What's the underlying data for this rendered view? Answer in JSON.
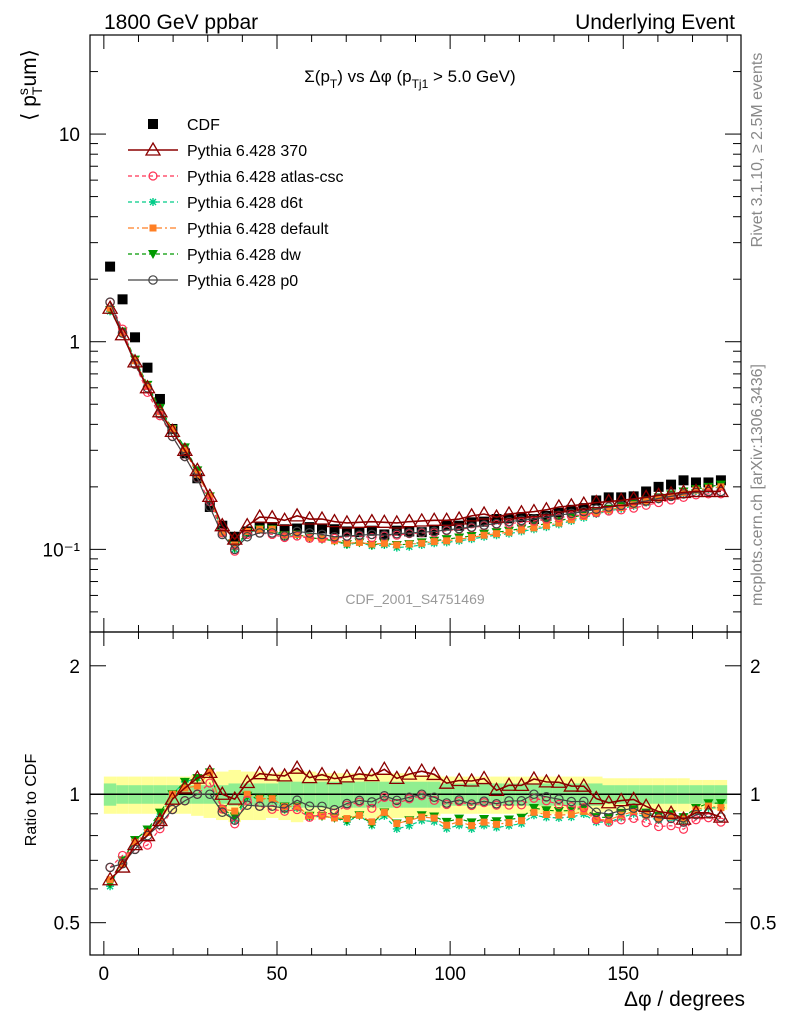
{
  "header": {
    "left": "1800 GeV ppbar",
    "right": "Underlying Event"
  },
  "side_labels": {
    "rivet": "Rivet 3.1.10, ≥ 2.5M events",
    "mcplots": "mcplots.cern.ch [arXiv:1306.3436]"
  },
  "watermark": "CDF_2001_S4751469",
  "main_title": {
    "sigma": "Σ(p",
    "sub_T": "T",
    "mid": ") vs Δφ (p",
    "sub_Tj1": "Tj1",
    "end": " > 5.0 GeV)"
  },
  "ylabel_top": {
    "open": "⟨ p",
    "sup_s": "s",
    "sub_T": "T",
    "rest": "um⟩"
  },
  "ylabel_ratio": "Ratio to CDF",
  "xlabel": "Δφ / degrees",
  "colors": {
    "cdf": "#000000",
    "p370": "#8b0000",
    "atlas": "#ff3355",
    "d6t": "#00cc88",
    "default": "#ff7f24",
    "dw": "#009900",
    "p0": "#444444",
    "band_inner": "#90ee90",
    "band_outer": "#ffff99"
  },
  "chart_data": [
    {
      "type": "scatter",
      "yscale": "log",
      "xlim": [
        -4,
        184
      ],
      "ylim": [
        0.04,
        30
      ],
      "x_ticks": [
        "0",
        "50",
        "100",
        "150"
      ],
      "y_ticks": [
        "10⁻¹",
        "1",
        "10"
      ],
      "legend_position": "top-left",
      "legend": [
        {
          "key": "cdf",
          "label": "CDF"
        },
        {
          "key": "p370",
          "label": "Pythia 6.428 370"
        },
        {
          "key": "atlas",
          "label": "Pythia 6.428 atlas-csc"
        },
        {
          "key": "d6t",
          "label": "Pythia 6.428 d6t"
        },
        {
          "key": "default",
          "label": "Pythia 6.428 default"
        },
        {
          "key": "dw",
          "label": "Pythia 6.428 dw"
        },
        {
          "key": "p0",
          "label": "Pythia 6.428 p0"
        }
      ],
      "x": [
        1.8,
        5.4,
        9.0,
        12.6,
        16.2,
        19.8,
        23.4,
        27.0,
        30.6,
        34.2,
        37.8,
        41.4,
        45.0,
        48.6,
        52.2,
        55.8,
        59.4,
        63.0,
        66.6,
        70.2,
        73.8,
        77.4,
        81.0,
        84.6,
        88.2,
        91.8,
        95.4,
        99.0,
        102.6,
        106.2,
        109.8,
        113.4,
        117.0,
        120.6,
        124.2,
        127.8,
        131.4,
        135.0,
        138.6,
        142.2,
        145.8,
        149.4,
        153.0,
        156.6,
        160.2,
        163.8,
        167.4,
        171.0,
        174.6,
        178.2
      ],
      "cdf": [
        2.3,
        1.6,
        1.05,
        0.75,
        0.53,
        0.38,
        0.29,
        0.22,
        0.16,
        0.13,
        0.115,
        0.122,
        0.128,
        0.128,
        0.125,
        0.126,
        0.128,
        0.126,
        0.125,
        0.122,
        0.121,
        0.123,
        0.118,
        0.123,
        0.122,
        0.121,
        0.124,
        0.13,
        0.13,
        0.135,
        0.136,
        0.14,
        0.141,
        0.143,
        0.14,
        0.145,
        0.15,
        0.155,
        0.158,
        0.172,
        0.178,
        0.178,
        0.18,
        0.19,
        0.2,
        0.205,
        0.215,
        0.21,
        0.21,
        0.215
      ],
      "series": {
        "p370": [
          1.45,
          1.08,
          0.8,
          0.6,
          0.46,
          0.37,
          0.3,
          0.24,
          0.18,
          0.13,
          0.112,
          0.13,
          0.143,
          0.142,
          0.138,
          0.145,
          0.14,
          0.14,
          0.136,
          0.134,
          0.135,
          0.136,
          0.135,
          0.134,
          0.136,
          0.137,
          0.138,
          0.138,
          0.14,
          0.145,
          0.148,
          0.143,
          0.148,
          0.15,
          0.152,
          0.155,
          0.16,
          0.162,
          0.165,
          0.168,
          0.17,
          0.172,
          0.175,
          0.178,
          0.182,
          0.185,
          0.188,
          0.19,
          0.19,
          0.19
        ],
        "atlas": [
          1.55,
          1.15,
          0.78,
          0.57,
          0.44,
          0.35,
          0.28,
          0.22,
          0.17,
          0.12,
          0.098,
          0.118,
          0.12,
          0.118,
          0.114,
          0.116,
          0.113,
          0.113,
          0.113,
          0.115,
          0.116,
          0.114,
          0.116,
          0.117,
          0.119,
          0.12,
          0.12,
          0.123,
          0.125,
          0.127,
          0.13,
          0.132,
          0.133,
          0.135,
          0.137,
          0.14,
          0.142,
          0.145,
          0.147,
          0.15,
          0.153,
          0.155,
          0.158,
          0.163,
          0.168,
          0.173,
          0.178,
          0.183,
          0.185,
          0.185
        ],
        "d6t": [
          1.4,
          1.12,
          0.82,
          0.62,
          0.47,
          0.38,
          0.31,
          0.24,
          0.18,
          0.12,
          0.1,
          0.12,
          0.125,
          0.125,
          0.115,
          0.117,
          0.113,
          0.112,
          0.11,
          0.105,
          0.108,
          0.104,
          0.105,
          0.102,
          0.103,
          0.105,
          0.107,
          0.108,
          0.11,
          0.112,
          0.115,
          0.117,
          0.119,
          0.122,
          0.125,
          0.128,
          0.132,
          0.137,
          0.142,
          0.148,
          0.153,
          0.157,
          0.162,
          0.168,
          0.174,
          0.18,
          0.186,
          0.191,
          0.195,
          0.2
        ],
        "default": [
          1.45,
          1.1,
          0.81,
          0.61,
          0.46,
          0.38,
          0.3,
          0.23,
          0.18,
          0.12,
          0.105,
          0.122,
          0.125,
          0.125,
          0.117,
          0.118,
          0.114,
          0.112,
          0.11,
          0.107,
          0.108,
          0.106,
          0.107,
          0.105,
          0.106,
          0.107,
          0.109,
          0.11,
          0.112,
          0.114,
          0.117,
          0.119,
          0.121,
          0.124,
          0.127,
          0.13,
          0.134,
          0.139,
          0.144,
          0.15,
          0.155,
          0.159,
          0.164,
          0.17,
          0.176,
          0.182,
          0.188,
          0.193,
          0.197,
          0.2
        ],
        "dw": [
          1.42,
          1.12,
          0.82,
          0.62,
          0.48,
          0.38,
          0.31,
          0.24,
          0.18,
          0.12,
          0.102,
          0.121,
          0.125,
          0.125,
          0.117,
          0.118,
          0.114,
          0.112,
          0.11,
          0.106,
          0.108,
          0.105,
          0.107,
          0.105,
          0.106,
          0.108,
          0.11,
          0.112,
          0.114,
          0.116,
          0.119,
          0.121,
          0.123,
          0.126,
          0.13,
          0.133,
          0.137,
          0.142,
          0.147,
          0.152,
          0.157,
          0.161,
          0.166,
          0.172,
          0.178,
          0.184,
          0.19,
          0.195,
          0.2,
          0.205
        ],
        "p0": [
          1.55,
          1.1,
          0.78,
          0.6,
          0.45,
          0.35,
          0.28,
          0.22,
          0.16,
          0.118,
          0.1,
          0.115,
          0.12,
          0.12,
          0.116,
          0.122,
          0.12,
          0.118,
          0.115,
          0.116,
          0.117,
          0.118,
          0.117,
          0.119,
          0.12,
          0.121,
          0.122,
          0.124,
          0.126,
          0.128,
          0.131,
          0.133,
          0.136,
          0.138,
          0.14,
          0.143,
          0.146,
          0.149,
          0.152,
          0.156,
          0.16,
          0.163,
          0.167,
          0.171,
          0.176,
          0.18,
          0.185,
          0.188,
          0.19,
          0.19
        ]
      }
    },
    {
      "type": "line",
      "yscale": "log",
      "title": "",
      "ylabel": "Ratio to CDF",
      "xlabel": "Δφ / degrees",
      "ylim": [
        0.42,
        2.4
      ],
      "y_ticks": [
        "0.5",
        "1",
        "2"
      ],
      "x_ticks": [
        "0",
        "50",
        "100",
        "150"
      ],
      "reference_line": 1.0,
      "band_inner": [
        0.06,
        0.05,
        0.05,
        0.05,
        0.05,
        0.05,
        0.05,
        0.05,
        0.05,
        0.05,
        0.06,
        0.06,
        0.06,
        0.06,
        0.07,
        0.07,
        0.07,
        0.07,
        0.07,
        0.07,
        0.07,
        0.07,
        0.07,
        0.07,
        0.07,
        0.07,
        0.07,
        0.06,
        0.06,
        0.06,
        0.06,
        0.06,
        0.06,
        0.06,
        0.06,
        0.06,
        0.06,
        0.06,
        0.06,
        0.06,
        0.05,
        0.05,
        0.05,
        0.05,
        0.05,
        0.05,
        0.05,
        0.05,
        0.05,
        0.05
      ],
      "band_outer": [
        0.1,
        0.1,
        0.1,
        0.1,
        0.1,
        0.1,
        0.1,
        0.11,
        0.12,
        0.13,
        0.14,
        0.13,
        0.13,
        0.12,
        0.13,
        0.14,
        0.13,
        0.12,
        0.12,
        0.12,
        0.12,
        0.12,
        0.12,
        0.12,
        0.12,
        0.11,
        0.11,
        0.1,
        0.1,
        0.1,
        0.1,
        0.1,
        0.1,
        0.1,
        0.1,
        0.1,
        0.1,
        0.1,
        0.1,
        0.1,
        0.09,
        0.09,
        0.09,
        0.09,
        0.09,
        0.09,
        0.09,
        0.08,
        0.08,
        0.08
      ]
    }
  ]
}
